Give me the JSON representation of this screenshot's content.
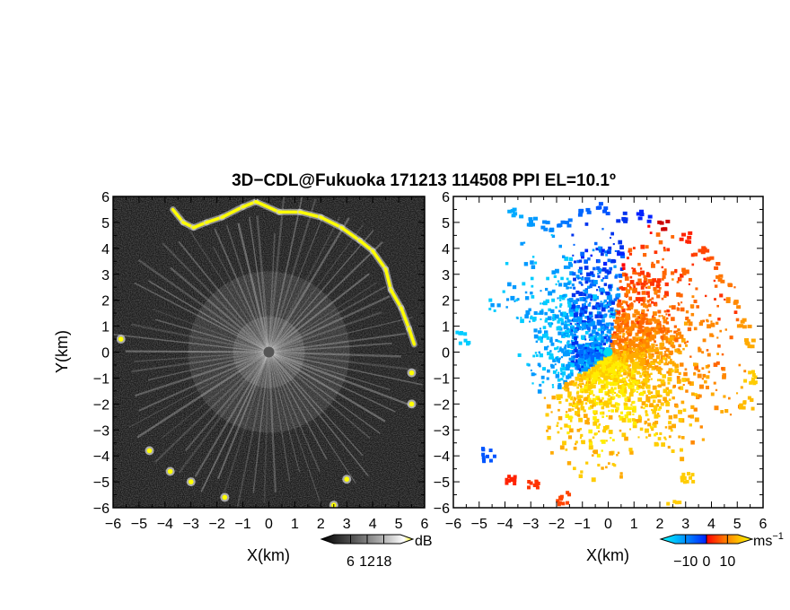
{
  "title": "3D−CDL@Fukuoka 171213 114508 PPI EL=10.1º",
  "chart_data": [
    {
      "type": "heatmap",
      "panel": "left",
      "variable": "signal intensity",
      "xlabel": "X(km)",
      "ylabel": "Y(km)",
      "xlim": [
        -6,
        6
      ],
      "ylim": [
        -6,
        6
      ],
      "x_ticks": [
        -6,
        -5,
        -4,
        -3,
        -2,
        -1,
        0,
        1,
        2,
        3,
        4,
        5,
        6
      ],
      "y_ticks": [
        -6,
        -5,
        -4,
        -3,
        -2,
        -1,
        0,
        1,
        2,
        3,
        4,
        5,
        6
      ],
      "tick_labels_x": [
        "−6",
        "−5",
        "−4",
        "−3",
        "−2",
        "−1",
        "0",
        "1",
        "2",
        "3",
        "4",
        "5",
        "6"
      ],
      "tick_labels_y": [
        "−6",
        "−5",
        "−4",
        "−3",
        "−2",
        "−1",
        "0",
        "1",
        "2",
        "3",
        "4",
        "5",
        "6"
      ],
      "colorbar": {
        "unit": "dB",
        "ticks": [
          6,
          12,
          18
        ],
        "tick_labels": [
          "6",
          "12",
          "18"
        ],
        "range": [
          0,
          24
        ],
        "colors": [
          "#000000",
          "#444444",
          "#888888",
          "#cccccc",
          "#ffffff",
          "#ffff00"
        ]
      },
      "background_color": "#1a1a1a",
      "echo_color": "#ffff00"
    },
    {
      "type": "heatmap",
      "panel": "right",
      "variable": "radial velocity",
      "xlabel": "X(km)",
      "ylabel": "",
      "xlim": [
        -6,
        6
      ],
      "ylim": [
        -6,
        6
      ],
      "x_ticks": [
        -6,
        -5,
        -4,
        -3,
        -2,
        -1,
        0,
        1,
        2,
        3,
        4,
        5,
        6
      ],
      "y_ticks": [
        -6,
        -5,
        -4,
        -3,
        -2,
        -1,
        0,
        1,
        2,
        3,
        4,
        5,
        6
      ],
      "tick_labels_x": [
        "−6",
        "−5",
        "−4",
        "−3",
        "−2",
        "−1",
        "0",
        "1",
        "2",
        "3",
        "4",
        "5",
        "6"
      ],
      "tick_labels_y": [
        "−6",
        "−5",
        "−4",
        "−3",
        "−2",
        "−1",
        "0",
        "1",
        "2",
        "3",
        "4",
        "5",
        "6"
      ],
      "colorbar": {
        "unit": "ms",
        "unit_exp": "−1",
        "ticks": [
          -10,
          0,
          10
        ],
        "tick_labels": [
          "−10",
          "0",
          "10"
        ],
        "range": [
          -15,
          15
        ],
        "colors": [
          "#00ffff",
          "#0099ff",
          "#0022ff",
          "#ff0000",
          "#ff7700",
          "#ffcc00",
          "#ffff00"
        ]
      }
    }
  ]
}
